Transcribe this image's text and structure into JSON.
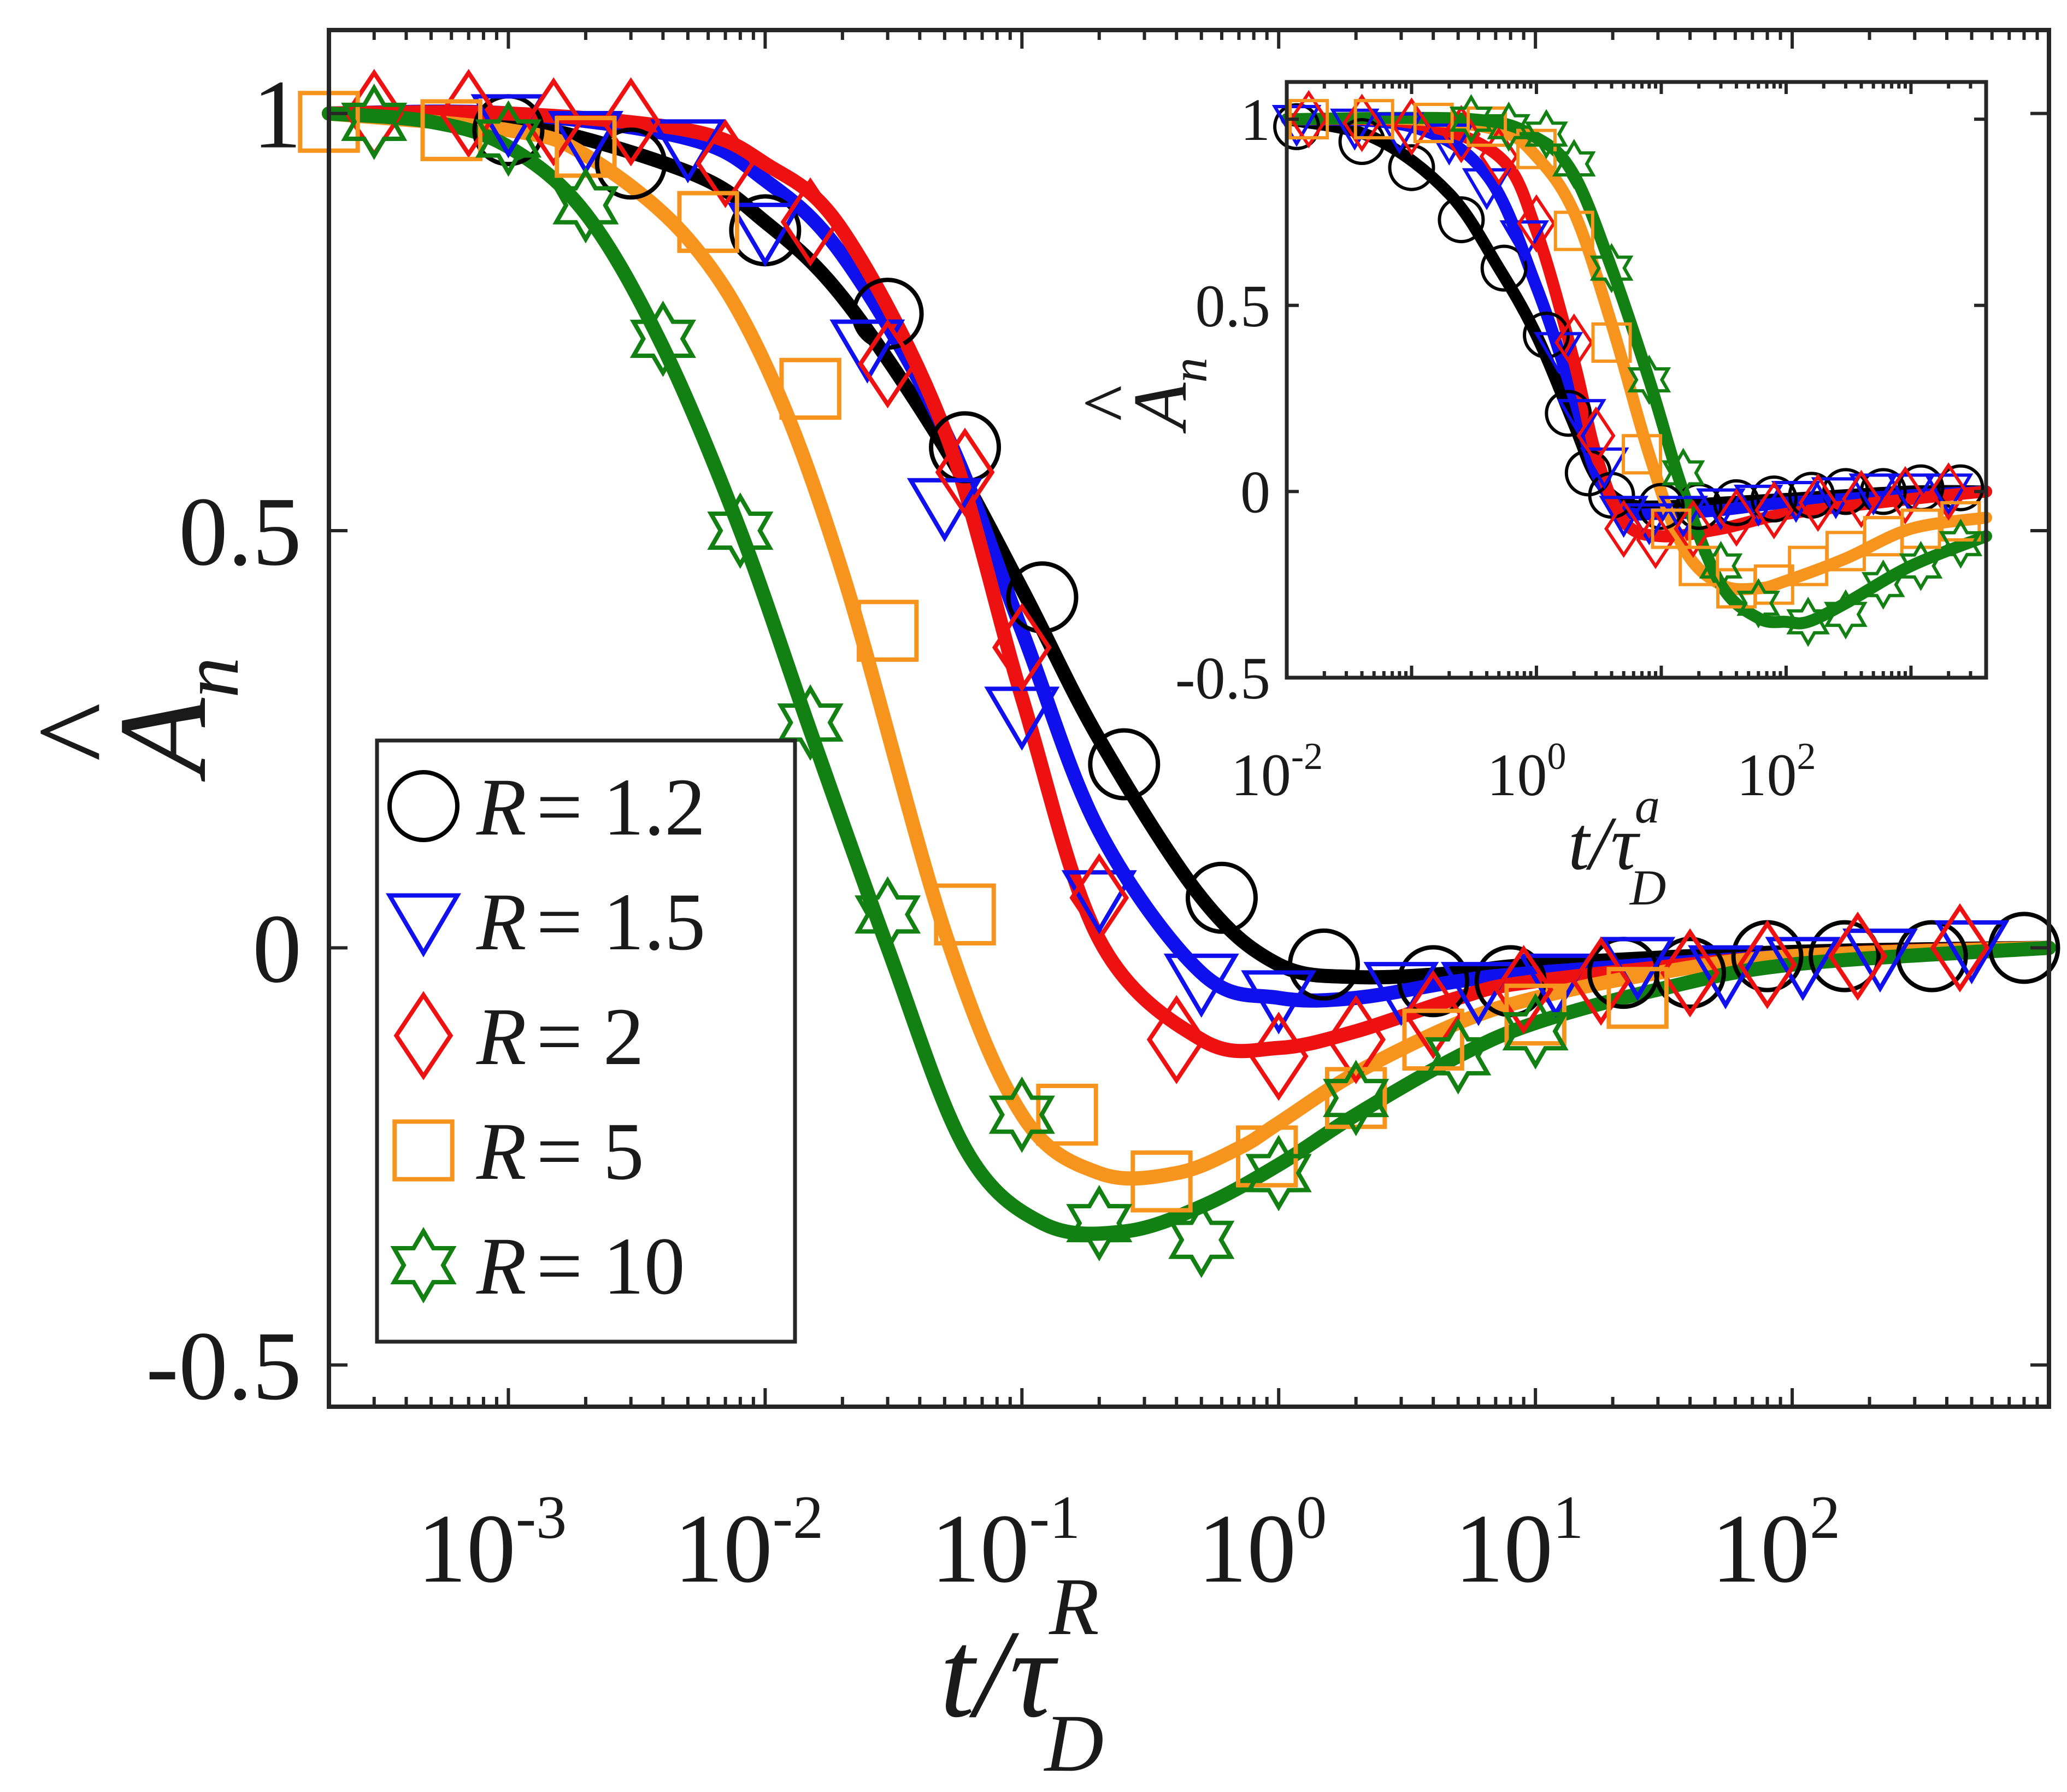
{
  "chart_data": [
    {
      "type": "line",
      "role": "main",
      "xscale": "log",
      "xlim": [
        0.0002,
        1000
      ],
      "ylim": [
        -0.55,
        1.1
      ],
      "xlabel": "t/τ_D^R",
      "xlabel_parts": {
        "base": "t/τ",
        "sub": "D",
        "sup": "R"
      },
      "ylabel": "Â_n",
      "ylabel_parts": {
        "base": "A",
        "hat": "^",
        "sub": "n"
      },
      "x_ticks": [
        0.001,
        0.01,
        0.1,
        1,
        10,
        100
      ],
      "x_tick_labels": [
        {
          "base": "10",
          "exp": "-3"
        },
        {
          "base": "10",
          "exp": "-2"
        },
        {
          "base": "10",
          "exp": "-1"
        },
        {
          "base": "10",
          "exp": "0"
        },
        {
          "base": "10",
          "exp": "1"
        },
        {
          "base": "10",
          "exp": "2"
        }
      ],
      "y_ticks": [
        -0.5,
        0,
        0.5,
        1
      ],
      "y_tick_labels": [
        "-0.5",
        "0",
        "0.5",
        "1"
      ],
      "grid": false,
      "legend_position": "lower-left",
      "series": [
        {
          "name": "R = 1.2",
          "legend_var": "R",
          "legend_eq": "= 1.2",
          "color": "#000000",
          "marker": "circle",
          "curve": {
            "x": [
              0.0002,
              0.001,
              0.005,
              0.01,
              0.02,
              0.05,
              0.1,
              0.2,
              0.5,
              1,
              2,
              5,
              10,
              100,
              1000
            ],
            "y": [
              1.0,
              0.99,
              0.93,
              0.87,
              0.78,
              0.6,
              0.43,
              0.25,
              0.06,
              -0.02,
              -0.035,
              -0.03,
              -0.02,
              -0.005,
              0.0
            ]
          },
          "markers": {
            "x": [
              0.001,
              0.003,
              0.01,
              0.03,
              0.06,
              0.12,
              0.25,
              0.6,
              1.5,
              4,
              8,
              22,
              40,
              80,
              160,
              350,
              800
            ],
            "y": [
              0.98,
              0.94,
              0.86,
              0.76,
              0.6,
              0.42,
              0.22,
              0.06,
              -0.02,
              -0.04,
              -0.04,
              -0.03,
              -0.03,
              -0.01,
              -0.01,
              -0.01,
              0.0
            ]
          }
        },
        {
          "name": "R = 1.5",
          "legend_var": "R",
          "legend_eq": "= 1.5",
          "color": "#1010ee",
          "marker": "triangle-down",
          "curve": {
            "x": [
              0.0002,
              0.001,
              0.005,
              0.01,
              0.02,
              0.05,
              0.1,
              0.2,
              0.5,
              1,
              2,
              5,
              10,
              100,
              1000
            ],
            "y": [
              1.0,
              1.0,
              0.97,
              0.92,
              0.83,
              0.62,
              0.38,
              0.14,
              -0.03,
              -0.06,
              -0.06,
              -0.04,
              -0.03,
              -0.01,
              0.0
            ]
          },
          "markers": {
            "x": [
              0.001,
              0.002,
              0.005,
              0.01,
              0.025,
              0.05,
              0.1,
              0.2,
              0.5,
              1,
              3,
              6,
              12,
              25,
              55,
              110,
              220,
              500
            ],
            "y": [
              0.99,
              0.97,
              0.96,
              0.86,
              0.72,
              0.53,
              0.28,
              0.06,
              -0.04,
              -0.06,
              -0.05,
              -0.05,
              -0.04,
              -0.02,
              -0.03,
              -0.02,
              -0.01,
              0.0
            ]
          }
        },
        {
          "name": "R = 2",
          "legend_var": "R",
          "legend_eq": "= 2",
          "color": "#ee1111",
          "marker": "diamond",
          "curve": {
            "x": [
              0.0002,
              0.001,
              0.005,
              0.01,
              0.02,
              0.05,
              0.1,
              0.2,
              0.5,
              1,
              2,
              5,
              10,
              100,
              1000
            ],
            "y": [
              1.0,
              1.0,
              0.98,
              0.94,
              0.86,
              0.62,
              0.3,
              0.01,
              -0.11,
              -0.12,
              -0.1,
              -0.06,
              -0.04,
              -0.01,
              0.0
            ]
          },
          "markers": {
            "x": [
              0.0003,
              0.0007,
              0.0015,
              0.003,
              0.007,
              0.015,
              0.03,
              0.06,
              0.1,
              0.2,
              0.4,
              1,
              2,
              4,
              9,
              18,
              40,
              80,
              180,
              450
            ],
            "y": [
              1.0,
              1.0,
              0.99,
              0.99,
              0.94,
              0.87,
              0.7,
              0.57,
              0.36,
              0.06,
              -0.11,
              -0.13,
              -0.11,
              -0.08,
              -0.05,
              -0.04,
              -0.03,
              -0.02,
              -0.01,
              0.0
            ]
          }
        },
        {
          "name": "R = 5",
          "legend_var": "R",
          "legend_eq": "= 5",
          "color": "#f7941d",
          "marker": "square",
          "curve": {
            "x": [
              0.0002,
              0.001,
              0.002,
              0.005,
              0.01,
              0.02,
              0.05,
              0.1,
              0.2,
              0.4,
              0.7,
              1,
              2,
              5,
              10,
              30,
              100,
              1000
            ],
            "y": [
              1.0,
              0.98,
              0.95,
              0.85,
              0.7,
              0.45,
              0.02,
              -0.2,
              -0.27,
              -0.27,
              -0.24,
              -0.21,
              -0.15,
              -0.09,
              -0.06,
              -0.03,
              -0.01,
              0.0
            ]
          },
          "markers": {
            "x": [
              0.0002,
              0.0006,
              0.002,
              0.006,
              0.015,
              0.03,
              0.06,
              0.15,
              0.35,
              0.9,
              2,
              4,
              10,
              25
            ],
            "y": [
              0.99,
              0.98,
              0.96,
              0.87,
              0.67,
              0.38,
              0.04,
              -0.2,
              -0.28,
              -0.25,
              -0.18,
              -0.11,
              -0.08,
              -0.06
            ]
          }
        },
        {
          "name": "R = 10",
          "legend_var": "R",
          "legend_eq": "= 10",
          "color": "#128012",
          "marker": "hexagram",
          "curve": {
            "x": [
              0.0002,
              0.0005,
              0.001,
              0.002,
              0.004,
              0.008,
              0.015,
              0.03,
              0.06,
              0.12,
              0.25,
              0.5,
              1,
              2,
              5,
              10,
              30,
              100,
              1000
            ],
            "y": [
              1.0,
              0.99,
              0.96,
              0.88,
              0.72,
              0.5,
              0.26,
              0.0,
              -0.24,
              -0.33,
              -0.34,
              -0.31,
              -0.26,
              -0.2,
              -0.13,
              -0.09,
              -0.05,
              -0.02,
              0.0
            ]
          },
          "markers": {
            "x": [
              0.0003,
              0.001,
              0.002,
              0.004,
              0.008,
              0.015,
              0.03,
              0.1,
              0.2,
              0.5,
              1,
              2,
              5,
              10
            ],
            "y": [
              0.99,
              0.97,
              0.89,
              0.73,
              0.5,
              0.27,
              0.04,
              -0.2,
              -0.33,
              -0.35,
              -0.27,
              -0.18,
              -0.13,
              -0.1
            ]
          }
        }
      ]
    },
    {
      "type": "line",
      "role": "inset",
      "xscale": "log",
      "xlim": [
        0.01,
        4000
      ],
      "ylim": [
        -0.5,
        1.1
      ],
      "xlabel": "t/τ_D^a",
      "xlabel_parts": {
        "base": "t/τ",
        "sub": "D",
        "sup": "a"
      },
      "ylabel": "Â_n",
      "ylabel_parts": {
        "base": "A",
        "hat": "^",
        "sub": "n"
      },
      "x_ticks": [
        0.01,
        1,
        100
      ],
      "x_tick_labels": [
        {
          "base": "10",
          "exp": "-2"
        },
        {
          "base": "10",
          "exp": "0"
        },
        {
          "base": "10",
          "exp": "2"
        }
      ],
      "y_ticks": [
        -0.5,
        0,
        0.5,
        1
      ],
      "y_tick_labels": [
        "-0.5",
        "0",
        "0.5",
        "1"
      ],
      "grid": false,
      "series": [
        {
          "name": "R = 1.2",
          "color": "#000000",
          "marker": "circle",
          "curve": {
            "x": [
              0.01,
              0.05,
              0.2,
              0.5,
              1,
              2,
              3,
              5,
              10,
              30,
              100,
              1000,
              4000
            ],
            "y": [
              1.0,
              0.95,
              0.8,
              0.6,
              0.42,
              0.18,
              0.04,
              -0.03,
              -0.04,
              -0.03,
              -0.02,
              0.0,
              0.0
            ]
          },
          "markers": {
            "x": [
              0.012,
              0.04,
              0.1,
              0.25,
              0.55,
              1.2,
              1.8,
              2.6,
              4,
              10,
              20,
              40,
              80,
              160,
              300,
              600,
              1200,
              2500
            ],
            "y": [
              0.98,
              0.94,
              0.87,
              0.73,
              0.6,
              0.42,
              0.21,
              0.05,
              -0.01,
              -0.04,
              -0.04,
              -0.03,
              -0.02,
              -0.01,
              0.0,
              0.0,
              0.01,
              0.01
            ]
          }
        },
        {
          "name": "R = 1.5",
          "color": "#1010ee",
          "marker": "triangle-down",
          "curve": {
            "x": [
              0.01,
              0.1,
              0.4,
              1,
              2,
              3,
              5,
              10,
              30,
              100,
              1000,
              4000
            ],
            "y": [
              1.0,
              0.98,
              0.85,
              0.55,
              0.25,
              0.05,
              -0.05,
              -0.06,
              -0.05,
              -0.03,
              -0.01,
              0.0
            ]
          },
          "markers": {
            "x": [
              0.012,
              0.035,
              0.08,
              0.2,
              0.4,
              0.8,
              1.5,
              2.3,
              3.5,
              5,
              8,
              15,
              30,
              60,
              120,
              250,
              500,
              1000,
              2000
            ],
            "y": [
              0.99,
              0.98,
              0.97,
              0.94,
              0.82,
              0.68,
              0.38,
              0.2,
              0.07,
              -0.06,
              -0.08,
              -0.06,
              -0.04,
              -0.03,
              -0.02,
              -0.01,
              0.0,
              0.0,
              0.0
            ]
          }
        },
        {
          "name": "R = 2",
          "color": "#ee1111",
          "marker": "diamond",
          "curve": {
            "x": [
              0.01,
              0.1,
              0.5,
              1,
              2,
              3,
              5,
              10,
              30,
              100,
              1000,
              4000
            ],
            "y": [
              1.0,
              0.99,
              0.9,
              0.7,
              0.35,
              0.1,
              -0.08,
              -0.12,
              -0.1,
              -0.06,
              -0.02,
              0.0
            ]
          },
          "markers": {
            "x": [
              0.015,
              0.04,
              0.1,
              0.25,
              0.5,
              1,
              2,
              3,
              5,
              9,
              18,
              40,
              80,
              180,
              400,
              900,
              2000
            ],
            "y": [
              1.0,
              0.99,
              0.98,
              0.96,
              0.9,
              0.72,
              0.4,
              0.15,
              -0.1,
              -0.13,
              -0.1,
              -0.07,
              -0.05,
              -0.03,
              -0.02,
              -0.01,
              0.0
            ]
          }
        },
        {
          "name": "R = 5",
          "color": "#f7941d",
          "marker": "square",
          "curve": {
            "x": [
              0.01,
              0.1,
              0.5,
              1,
              2,
              4,
              8,
              15,
              30,
              60,
              100,
              300,
              1000,
              4000
            ],
            "y": [
              1.0,
              1.0,
              0.97,
              0.9,
              0.75,
              0.45,
              0.1,
              -0.15,
              -0.25,
              -0.26,
              -0.24,
              -0.18,
              -0.1,
              -0.07
            ]
          },
          "markers": {
            "x": [
              0.015,
              0.05,
              0.15,
              0.4,
              1,
              2,
              4,
              7,
              12,
              20,
              40,
              80,
              150,
              300,
              600,
              1200,
              2500
            ],
            "y": [
              1.0,
              1.0,
              0.99,
              0.98,
              0.92,
              0.7,
              0.4,
              0.1,
              -0.1,
              -0.2,
              -0.26,
              -0.25,
              -0.2,
              -0.16,
              -0.12,
              -0.1,
              -0.08
            ]
          }
        },
        {
          "name": "R = 10",
          "color": "#128012",
          "marker": "hexagram",
          "curve": {
            "x": [
              0.01,
              0.3,
              1,
              2,
              4,
              8,
              15,
              30,
              60,
              100,
              150,
              300,
              1000,
              4000
            ],
            "y": [
              1.0,
              1.0,
              0.95,
              0.85,
              0.6,
              0.3,
              0.0,
              -0.25,
              -0.34,
              -0.35,
              -0.35,
              -0.3,
              -0.2,
              -0.12
            ]
          },
          "markers": {
            "x": [
              0.3,
              0.6,
              1.2,
              2,
              4,
              8,
              15,
              30,
              60,
              150,
              300,
              600,
              1200,
              2500
            ],
            "y": [
              1.0,
              0.98,
              0.96,
              0.88,
              0.6,
              0.3,
              0.05,
              -0.2,
              -0.3,
              -0.35,
              -0.33,
              -0.25,
              -0.2,
              -0.14
            ]
          }
        }
      ]
    }
  ]
}
